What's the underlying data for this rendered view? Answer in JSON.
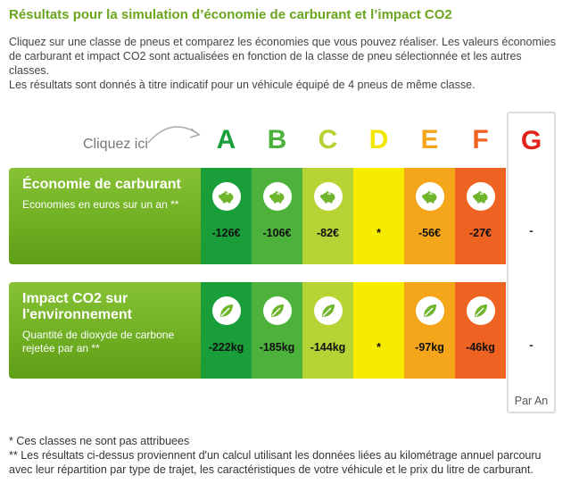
{
  "title": "Résultats pour la simulation d’économie de carburant et l’impact CO2",
  "intro": {
    "line1": "Cliquez sur une classe de pneus et comparez les économies que vous pouvez réaliser. Les valeurs économies de carburant et impact CO2 sont actualisées en fonction de la classe de pneu sélectionnée et les autres classes.",
    "line2": "Les résultats sont donnés à titre indicatif pour un véhicule équipé de 4 pneus de même classe."
  },
  "click_hint": "Cliquez ici",
  "classes": [
    {
      "letter": "A",
      "color": "#1a9e3a",
      "bg": "#1a9e3a",
      "fuel": "-126€",
      "co2": "-222kg"
    },
    {
      "letter": "B",
      "color": "#4cb23b",
      "bg": "#4cb23b",
      "fuel": "-106€",
      "co2": "-185kg"
    },
    {
      "letter": "C",
      "color": "#b5d334",
      "bg": "#b5d334",
      "fuel": "-82€",
      "co2": "-144kg"
    },
    {
      "letter": "D",
      "color": "#f2e600",
      "bg": "#f7ec00",
      "fuel": "*",
      "co2": "*"
    },
    {
      "letter": "E",
      "color": "#f5a519",
      "bg": "#f5a519",
      "fuel": "-56€",
      "co2": "-97kg"
    },
    {
      "letter": "F",
      "color": "#ef6322",
      "bg": "#ef6322",
      "fuel": "-27€",
      "co2": "-46kg"
    }
  ],
  "class_g": {
    "letter": "G",
    "color": "#e2231a",
    "fuel": "-",
    "co2": "-",
    "footer": "Par An"
  },
  "rows": {
    "fuel": {
      "title": "Économie de carburant",
      "desc": "Economies en euros sur un an **",
      "icon": "piggy-bank-icon"
    },
    "co2": {
      "title": "Impact CO2 sur l'environnement",
      "desc": "Quantité de dioxyde de carbone rejetée par an **",
      "icon": "leaf-icon"
    }
  },
  "footnotes": {
    "note1": "* Ces classes ne sont pas attribuees",
    "note2": "** Les résultats ci-dessus proviennent d'un calcul utilisant les données liées au kilométrage annuel parcouru avec leur répartition par type de trajet, les caractéristiques de votre véhicule et le prix du litre de carburant."
  }
}
